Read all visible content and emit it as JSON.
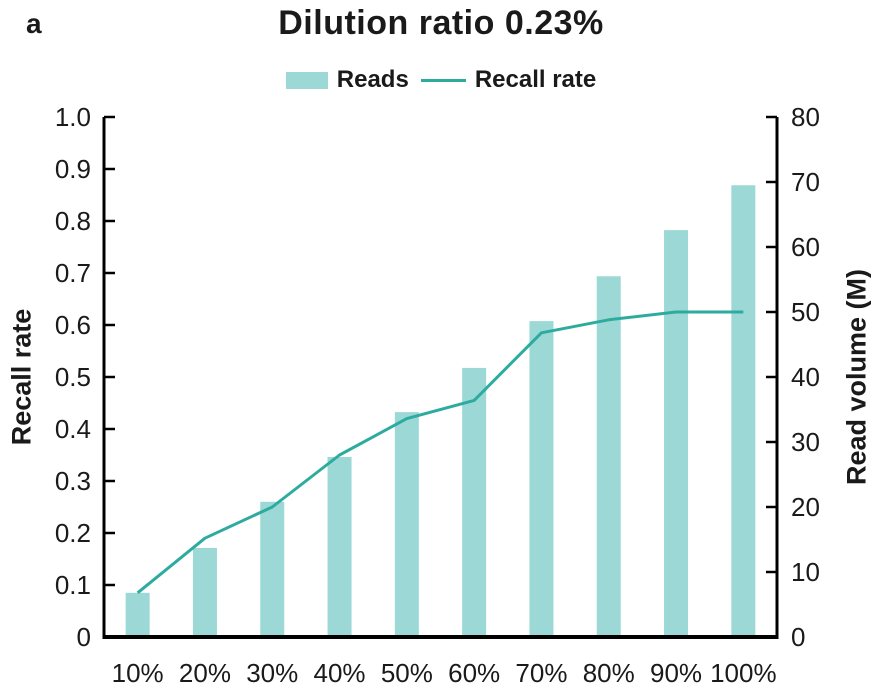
{
  "panel_label": "a",
  "title": "Dilution ratio 0.23%",
  "colors": {
    "bar_fill": "#9cd9d6",
    "line_stroke": "#2eab9f",
    "axis": "#000000",
    "text": "#1a1a1a"
  },
  "chart_data": {
    "type": "bar",
    "subtype": "bar+line combo, dual y-axes",
    "title": "Dilution ratio 0.23%",
    "categories": [
      "10%",
      "20%",
      "30%",
      "40%",
      "50%",
      "60%",
      "70%",
      "80%",
      "90%",
      "100%"
    ],
    "series": [
      {
        "name": "Reads",
        "type": "bar",
        "axis": "right",
        "unit": "M",
        "values": [
          6.8,
          13.7,
          20.8,
          27.7,
          34.6,
          41.4,
          48.6,
          55.5,
          62.6,
          69.5
        ]
      },
      {
        "name": "Recall rate",
        "type": "line",
        "axis": "left",
        "values": [
          0.085,
          0.19,
          0.25,
          0.35,
          0.42,
          0.455,
          0.585,
          0.61,
          0.625,
          0.625
        ]
      }
    ],
    "axes": {
      "left": {
        "title": "Recall rate",
        "min": 0,
        "max": 1.0,
        "tick_labels": [
          "0",
          "0.1",
          "0.2",
          "0.3",
          "0.4",
          "0.5",
          "0.6",
          "0.7",
          "0.8",
          "0.9",
          "1.0"
        ]
      },
      "right": {
        "title": "Read volume (M)",
        "min": 0,
        "max": 80,
        "tick_labels": [
          "0",
          "10",
          "20",
          "30",
          "40",
          "50",
          "60",
          "70",
          "80"
        ]
      }
    },
    "grid": false,
    "legend_position": "top-center"
  }
}
